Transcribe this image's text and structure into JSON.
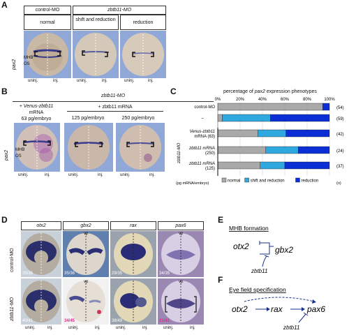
{
  "panelA": {
    "letter": "A",
    "stain": "pax2",
    "group1": "control-MO",
    "group2": "zbtb11-MO",
    "phenotypes": [
      "normal",
      "shift and reduction",
      "reduction"
    ],
    "mhb": "MHB",
    "os": "OS",
    "uninj": "uninj.",
    "inj": "inj."
  },
  "panelB": {
    "letter": "B",
    "group": "zbtb11-MO",
    "col1_line1": "+ Venus-zbtb11",
    "col1_line2": "mRNA",
    "col1_line3": "63 pg/embryo",
    "col23_header": "+ zbtb11 mRNA",
    "col2": "125 pg/embryo",
    "col3": "250 pg/embryo",
    "stain": "pax2",
    "mhb": "MHB",
    "os": "OS",
    "uninj": "uninj.",
    "inj": "inj."
  },
  "panelC": {
    "letter": "C",
    "title_pre": "percentage of ",
    "title_gene": "pax2",
    "title_post": " expression phenotypes",
    "ticks": [
      "0%",
      "20%",
      "40%",
      "60%",
      "80%",
      "100%"
    ],
    "row_labels": [
      "control-MO",
      "–",
      "Venus-zbtb11 mRNA (63)",
      "zbtb11 mRNA (250)",
      "zbtb11 mRNA (125)"
    ],
    "row_counts": [
      "(54)",
      "(59)",
      "(42)",
      "(24)",
      "(37)"
    ],
    "side_label": "zbtb11-MO",
    "unit_label": "(pg mRNA/embryo)",
    "n_label": "(n)",
    "legend": [
      "normal",
      "shift and reduction",
      "reduction"
    ],
    "colors": {
      "normal": "#a9a9a9",
      "shift": "#2fa8e0",
      "reduction": "#0a2fd6"
    }
  },
  "chart_data": {
    "type": "bar",
    "orientation": "horizontal-stacked",
    "title": "percentage of pax2 expression phenotypes",
    "categories": [
      "control-MO",
      "–",
      "Venus-zbtb11 mRNA (63)",
      "zbtb11 mRNA (250)",
      "zbtb11 mRNA (125)"
    ],
    "series": [
      {
        "name": "normal",
        "values": [
          94,
          4,
          36,
          43,
          38
        ]
      },
      {
        "name": "shift and reduction",
        "values": [
          0,
          43,
          25,
          29,
          22
        ]
      },
      {
        "name": "reduction",
        "values": [
          6,
          53,
          39,
          28,
          40
        ]
      }
    ],
    "n": [
      54,
      59,
      42,
      24,
      37
    ],
    "xlim": [
      0,
      100
    ]
  },
  "panelD": {
    "letter": "D",
    "genes": [
      "otx2",
      "gbx2",
      "rax",
      "pax6"
    ],
    "row1": "control-MO",
    "row2": "zbtb11-MO",
    "vp": "vp",
    "counts_row1": [
      "35/36",
      "35/36",
      "29/35",
      "34/35"
    ],
    "counts_row2": [
      "40/41",
      "34/45",
      "38/49",
      "21/41"
    ],
    "uninj": "uninj.",
    "inj": "inj."
  },
  "panelE": {
    "letter": "E",
    "title": "MHB formation",
    "g1": "otx2",
    "g2": "gbx2",
    "reg": "zbtb11"
  },
  "panelF": {
    "letter": "F",
    "title": "Eye field specification",
    "g1": "otx2",
    "g2": "rax",
    "g3": "pax6",
    "reg": "zbtb11"
  }
}
